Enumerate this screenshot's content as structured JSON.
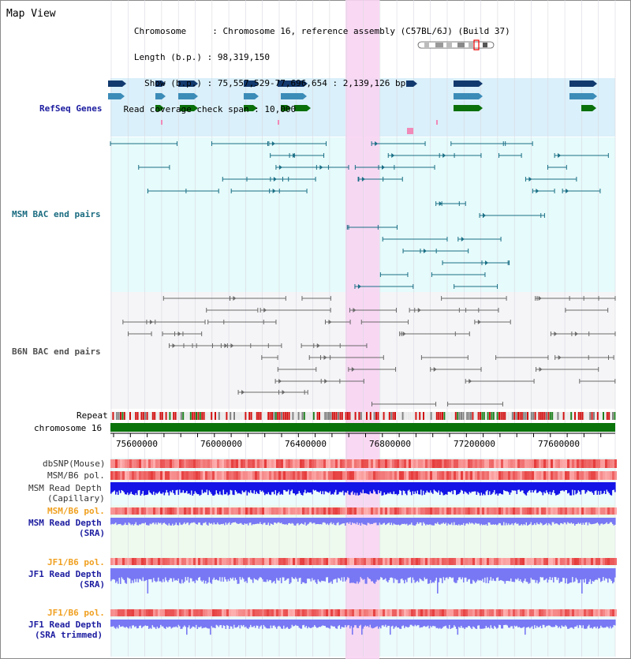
{
  "title": "Map View",
  "info": {
    "chromosome_line": "   Chromosome     : Chromosome 16, reference assembly (C57BL/6J) (Build 37)",
    "length_line": "   Length (b.p.) : 98,319,150",
    "show_line": "     Show (b.p.) : 75,557,529-77,696,654 : 2,139,126 bp",
    "coverage_line": " Read coverage check span : 10,000"
  },
  "tracks": {
    "refseq": "RefSeq Genes",
    "msm_bac": "MSM BAC end pairs",
    "b6n_bac": "B6N BAC end pairs",
    "repeat": "Repeat",
    "chromosome": "chromosome 16",
    "dbsnp": "dbSNP(Mouse)",
    "msm_b6_pol": "MSM/B6 pol.",
    "msm_depth_cap_1": "MSM Read Depth",
    "msm_depth_cap_2": "(Capillary)",
    "msm_b6_pol_sra": "MSM/B6 pol.",
    "msm_depth_sra_1": "MSM Read Depth",
    "msm_depth_sra_2": "(SRA)",
    "jf1_pol": "JF1/B6 pol.",
    "jf1_depth_1": "JF1 Read Depth",
    "jf1_depth_2": "(SRA)",
    "jf1_pol_trim": "JF1/B6 pol.",
    "jf1_depth_trim_1": "JF1 Read Depth",
    "jf1_depth_trim_2": "(SRA trimmed)"
  },
  "axis": {
    "ticks": [
      "75600000",
      "76000000",
      "76400000",
      "76800000",
      "77200000",
      "77600000"
    ]
  },
  "colors": {
    "refseq_bg": "#daf0fa",
    "msm_bg": "#e6fbfb",
    "b6n_bg": "#f5f5f7",
    "highlight": "#f8d4f2",
    "gene_dark": "#123a6e",
    "gene_mid": "#3c8cb8",
    "gene_green": "#0a700a",
    "msm_line": "#1a6f86",
    "b6n_line": "#6a6a6a",
    "chrom_green": "#0a730a",
    "depth_blue": "#1414e6",
    "depth_light": "#7878f4"
  }
}
